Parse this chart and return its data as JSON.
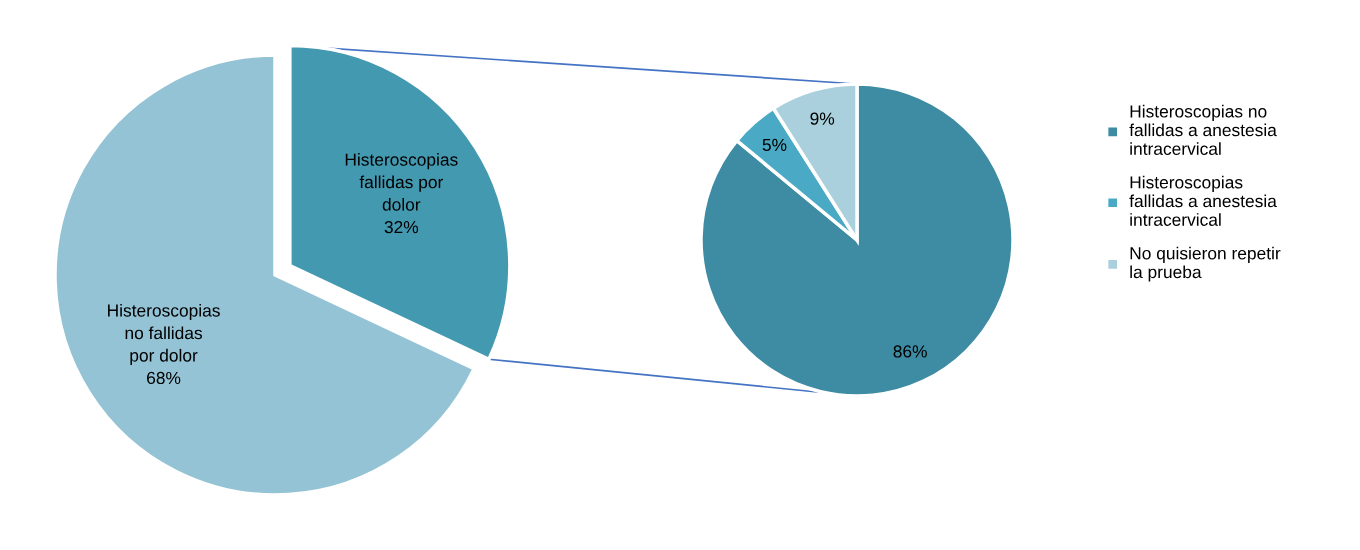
{
  "chart_data": [
    {
      "type": "pie",
      "categories": [
        "Histeroscopias fallidas por dolor",
        "Histeroscopias no fallidas por dolor"
      ],
      "values": [
        32,
        68
      ],
      "value_labels": [
        "32%",
        "68%"
      ],
      "colors": [
        "#4399b0",
        "#93c3d4"
      ],
      "legend": false
    },
    {
      "type": "pie",
      "categories": [
        "Histeroscopias no fallidas a anestesia intracervical",
        "Histeroscopias fallidas a anestesia intracervical",
        "No quisieron repetir la prueba"
      ],
      "values": [
        86,
        5,
        9
      ],
      "value_labels": [
        "86%",
        "5%",
        "9%"
      ],
      "colors": [
        "#3d8ca3",
        "#4aaac5",
        "#a9d0dc"
      ],
      "legend": "right"
    }
  ]
}
